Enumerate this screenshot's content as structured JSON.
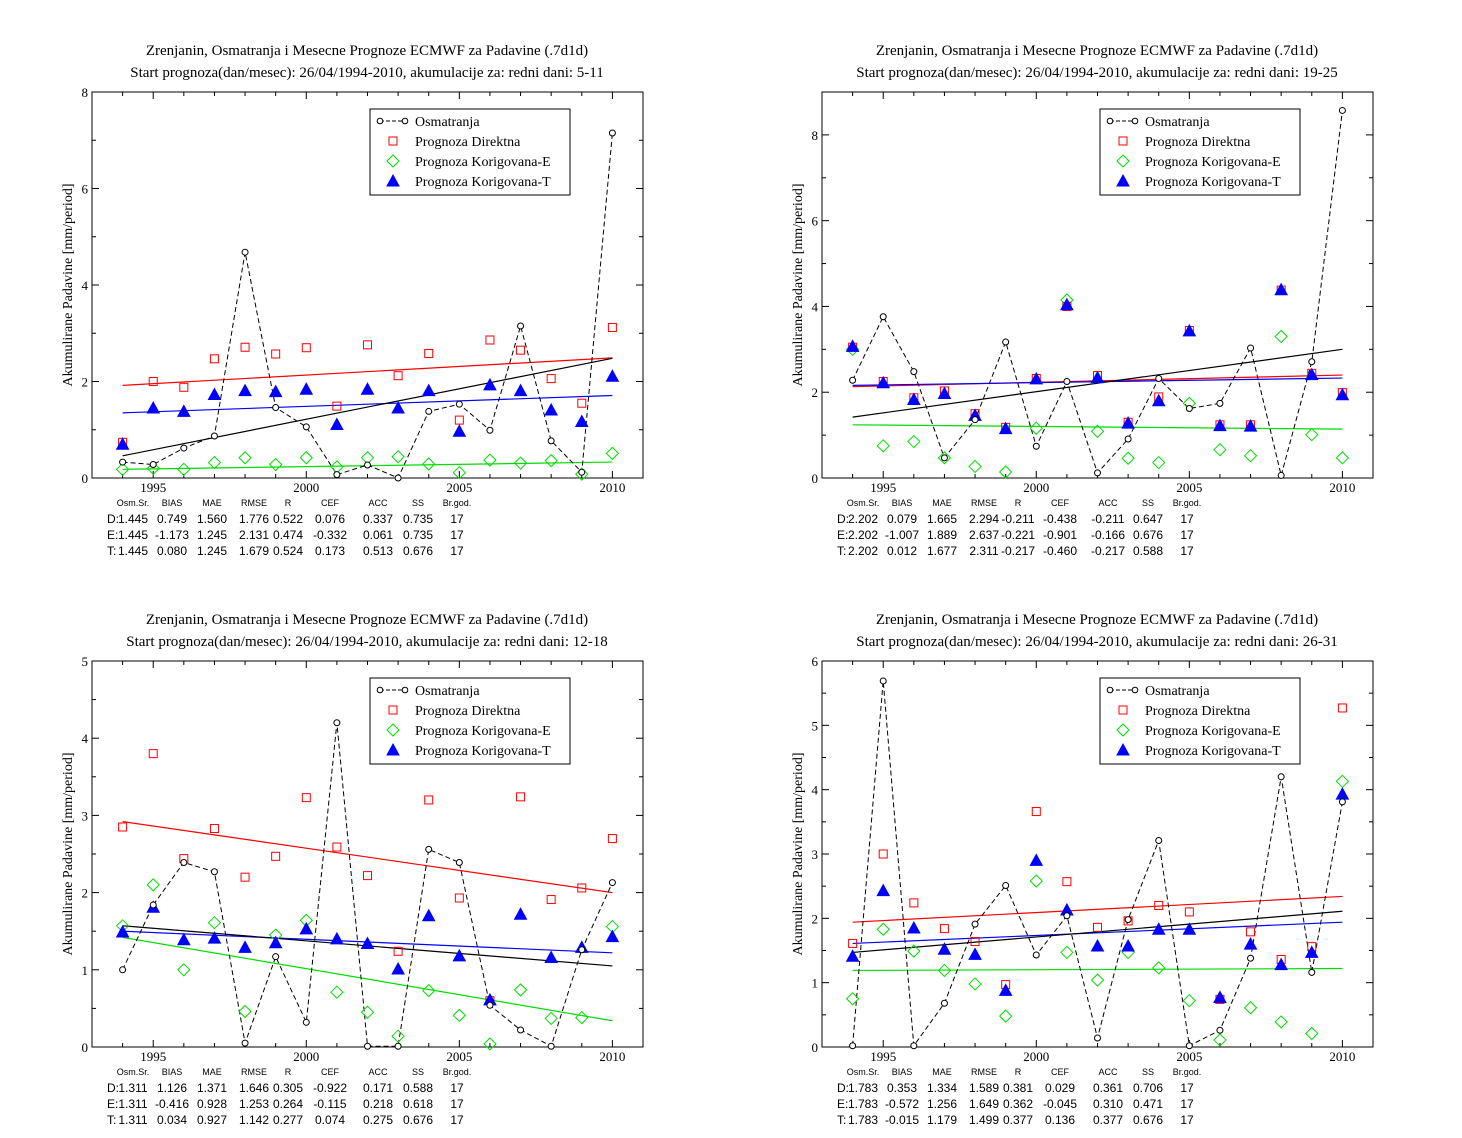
{
  "legend_labels": [
    "Osmatranja",
    "Prognoza Direktna",
    "Prognoza Korigovana-E",
    "Prognoza Korigovana-T"
  ],
  "colors": {
    "obs": "#000000",
    "direct": "#ff0000",
    "corrE": "#00dd00",
    "corrT": "#0000ff"
  },
  "stat_headers": [
    "Osm.Sr.",
    "BIAS",
    "MAE",
    "RMSE",
    "R",
    "CEF",
    "ACC",
    "SS",
    "Br.god."
  ],
  "chart_data": [
    {
      "type": "scatter",
      "title": "Zrenjanin, Osmatranja i Mesecne Prognoze ECMWF za Padavine (.7d1d)",
      "subtitle": "Start prognoza(dan/mesec): 26/04/1994-2010, akumulacije za: redni dani: 5-11",
      "ylabel": "Akumulirane Padavine [mm/period]",
      "xlim": [
        1993,
        2011
      ],
      "ylim": [
        0,
        8
      ],
      "yticks": [
        0,
        2,
        4,
        6,
        8
      ],
      "xticks": [
        1995,
        2000,
        2005,
        2010
      ],
      "legend_position": "top-right",
      "x": [
        1994,
        1995,
        1996,
        1997,
        1998,
        1999,
        2000,
        2001,
        2002,
        2003,
        2004,
        2005,
        2006,
        2007,
        2008,
        2009,
        2010
      ],
      "series": [
        {
          "name": "Osmatranja",
          "values": [
            0.33,
            0.28,
            0.62,
            0.87,
            4.68,
            1.46,
            1.06,
            0.07,
            0.27,
            0.0,
            1.38,
            1.53,
            0.99,
            3.15,
            0.77,
            0.12,
            7.15
          ]
        },
        {
          "name": "Prognoza Direktna",
          "values": [
            0.74,
            2.0,
            1.88,
            2.47,
            2.71,
            2.57,
            2.7,
            1.49,
            2.76,
            2.12,
            2.58,
            1.2,
            2.86,
            2.65,
            2.06,
            1.55,
            3.12
          ]
        },
        {
          "name": "Prognoza Korigovana-E",
          "values": [
            0.18,
            0.2,
            0.18,
            0.32,
            0.42,
            0.28,
            0.42,
            0.23,
            0.42,
            0.44,
            0.29,
            0.11,
            0.37,
            0.31,
            0.36,
            0.08,
            0.51
          ]
        },
        {
          "name": "Prognoza Korigovana-T",
          "values": [
            0.7,
            1.45,
            1.38,
            1.73,
            1.81,
            1.79,
            1.84,
            1.11,
            1.84,
            1.45,
            1.81,
            0.97,
            1.93,
            1.81,
            1.41,
            1.17,
            2.11
          ]
        }
      ],
      "trends": {
        "obs": [
          0.46,
          2.48
        ],
        "direct": [
          1.92,
          2.49
        ],
        "corrE": [
          0.18,
          0.33
        ],
        "corrT": [
          1.35,
          1.71
        ]
      },
      "stats": [
        {
          "label": "D:",
          "values": [
            "1.445",
            "0.749",
            "1.560",
            "1.776",
            "0.522",
            "0.076",
            "0.337",
            "0.735",
            "17"
          ]
        },
        {
          "label": "E:",
          "values": [
            "1.445",
            "-1.173",
            "1.245",
            "2.131",
            "0.474",
            "-0.332",
            "0.061",
            "0.735",
            "17"
          ]
        },
        {
          "label": "T:",
          "values": [
            "1.445",
            "0.080",
            "1.245",
            "1.679",
            "0.524",
            "0.173",
            "0.513",
            "0.676",
            "17"
          ]
        }
      ]
    },
    {
      "type": "scatter",
      "title": "Zrenjanin, Osmatranja i Mesecne Prognoze ECMWF za Padavine (.7d1d)",
      "subtitle": "Start prognoza(dan/mesec): 26/04/1994-2010, akumulacije za: redni dani: 19-25",
      "ylabel": "Akumulirane Padavine [mm/period]",
      "xlim": [
        1993,
        2011
      ],
      "ylim": [
        0,
        9
      ],
      "yticks": [
        0,
        2,
        4,
        6,
        8
      ],
      "xticks": [
        1995,
        2000,
        2005,
        2010
      ],
      "legend_position": "top-right",
      "x": [
        1994,
        1995,
        1996,
        1997,
        1998,
        1999,
        2000,
        2001,
        2002,
        2003,
        2004,
        2005,
        2006,
        2007,
        2008,
        2009,
        2010
      ],
      "series": [
        {
          "name": "Osmatranja",
          "values": [
            2.28,
            3.76,
            2.48,
            0.47,
            1.36,
            3.17,
            0.74,
            2.25,
            0.12,
            0.91,
            2.32,
            1.62,
            1.74,
            3.03,
            0.06,
            2.71,
            8.57
          ]
        },
        {
          "name": "Prognoza Direktna",
          "values": [
            3.05,
            2.25,
            1.87,
            2.03,
            1.5,
            1.18,
            2.32,
            4.0,
            2.39,
            1.3,
            1.89,
            3.44,
            1.24,
            1.24,
            4.38,
            2.44,
            1.99
          ]
        },
        {
          "name": "Prognoza Korigovana-E",
          "values": [
            3.0,
            0.75,
            0.85,
            0.47,
            0.27,
            0.14,
            1.16,
            4.15,
            1.09,
            0.46,
            0.36,
            1.74,
            0.66,
            0.52,
            3.3,
            1.01,
            0.47
          ]
        },
        {
          "name": "Prognoza Korigovana-T",
          "values": [
            3.07,
            2.22,
            1.83,
            1.97,
            1.46,
            1.15,
            2.31,
            4.04,
            2.34,
            1.28,
            1.8,
            3.43,
            1.22,
            1.21,
            4.39,
            2.41,
            1.94
          ]
        }
      ],
      "trends": {
        "obs": [
          1.42,
          3.0
        ],
        "direct": [
          2.13,
          2.4
        ],
        "corrE": [
          1.24,
          1.14
        ],
        "corrT": [
          2.16,
          2.33
        ]
      },
      "stats": [
        {
          "label": "D:",
          "values": [
            "2.202",
            "0.079",
            "1.665",
            "2.294",
            "-0.211",
            "-0.438",
            "-0.211",
            "0.647",
            "17"
          ]
        },
        {
          "label": "E:",
          "values": [
            "2.202",
            "-1.007",
            "1.889",
            "2.637",
            "-0.221",
            "-0.901",
            "-0.166",
            "0.676",
            "17"
          ]
        },
        {
          "label": "T:",
          "values": [
            "2.202",
            "0.012",
            "1.677",
            "2.311",
            "-0.217",
            "-0.460",
            "-0.217",
            "0.588",
            "17"
          ]
        }
      ]
    },
    {
      "type": "scatter",
      "title": "Zrenjanin, Osmatranja i Mesecne Prognoze ECMWF za Padavine (.7d1d)",
      "subtitle": "Start prognoza(dan/mesec): 26/04/1994-2010, akumulacije za: redni dani: 12-18",
      "ylabel": "Akumulirane Padavine [mm/period]",
      "xlim": [
        1993,
        2011
      ],
      "ylim": [
        0,
        5
      ],
      "yticks": [
        0,
        1,
        2,
        3,
        4,
        5
      ],
      "xticks": [
        1995,
        2000,
        2005,
        2010
      ],
      "legend_position": "top-right",
      "x": [
        1994,
        1995,
        1996,
        1997,
        1998,
        1999,
        2000,
        2001,
        2002,
        2003,
        2004,
        2005,
        2006,
        2007,
        2008,
        2009,
        2010
      ],
      "series": [
        {
          "name": "Osmatranja",
          "values": [
            1.0,
            1.84,
            2.39,
            2.27,
            0.05,
            1.17,
            0.32,
            4.2,
            0.01,
            0.01,
            2.56,
            2.39,
            0.54,
            0.22,
            0.01,
            1.26,
            2.13
          ]
        },
        {
          "name": "Prognoza Direktna",
          "values": [
            2.85,
            3.8,
            2.44,
            2.83,
            2.2,
            2.47,
            3.23,
            2.59,
            2.22,
            1.24,
            3.2,
            1.93,
            0.6,
            3.24,
            1.91,
            2.06,
            2.7
          ]
        },
        {
          "name": "Prognoza Korigovana-E",
          "values": [
            1.57,
            2.1,
            1.0,
            1.61,
            0.46,
            1.45,
            1.64,
            0.71,
            0.45,
            0.14,
            0.73,
            0.41,
            0.04,
            0.74,
            0.37,
            0.38,
            1.56
          ]
        },
        {
          "name": "Prognoza Korigovana-T",
          "values": [
            1.49,
            1.81,
            1.39,
            1.41,
            1.29,
            1.35,
            1.53,
            1.4,
            1.34,
            1.01,
            1.7,
            1.18,
            0.61,
            1.72,
            1.16,
            1.29,
            1.43
          ]
        }
      ],
      "trends": {
        "obs": [
          1.57,
          1.05
        ],
        "direct": [
          2.92,
          2.0
        ],
        "corrE": [
          1.42,
          0.34
        ],
        "corrT": [
          1.5,
          1.22
        ]
      },
      "stats": [
        {
          "label": "D:",
          "values": [
            "1.311",
            "1.126",
            "1.371",
            "1.646",
            "0.305",
            "-0.922",
            "0.171",
            "0.588",
            "17"
          ]
        },
        {
          "label": "E:",
          "values": [
            "1.311",
            "-0.416",
            "0.928",
            "1.253",
            "0.264",
            "-0.115",
            "0.218",
            "0.618",
            "17"
          ]
        },
        {
          "label": "T:",
          "values": [
            "1.311",
            "0.034",
            "0.927",
            "1.142",
            "0.277",
            "0.074",
            "0.275",
            "0.676",
            "17"
          ]
        }
      ]
    },
    {
      "type": "scatter",
      "title": "Zrenjanin, Osmatranja i Mesecne Prognoze ECMWF za Padavine (.7d1d)",
      "subtitle": "Start prognoza(dan/mesec): 26/04/1994-2010, akumulacije za: redni dani: 26-31",
      "ylabel": "Akumulirane Padavine [mm/period]",
      "xlim": [
        1993,
        2011
      ],
      "ylim": [
        0,
        6
      ],
      "yticks": [
        0,
        1,
        2,
        3,
        4,
        5,
        6
      ],
      "xticks": [
        1995,
        2000,
        2005,
        2010
      ],
      "legend_position": "top-right",
      "x": [
        1994,
        1995,
        1996,
        1997,
        1998,
        1999,
        2000,
        2001,
        2002,
        2003,
        2004,
        2005,
        2006,
        2007,
        2008,
        2009,
        2010
      ],
      "series": [
        {
          "name": "Osmatranja",
          "values": [
            0.02,
            5.69,
            0.02,
            0.68,
            1.91,
            2.51,
            1.43,
            2.04,
            0.14,
            1.98,
            3.21,
            0.02,
            0.26,
            1.38,
            4.2,
            1.16,
            3.81
          ]
        },
        {
          "name": "Prognoza Direktna",
          "values": [
            1.61,
            3.0,
            2.24,
            1.84,
            1.64,
            0.97,
            3.66,
            2.57,
            1.86,
            1.96,
            2.2,
            2.1,
            0.74,
            1.79,
            1.36,
            1.56,
            5.27
          ]
        },
        {
          "name": "Prognoza Korigovana-E",
          "values": [
            0.75,
            1.83,
            1.49,
            1.19,
            0.98,
            0.48,
            2.58,
            1.47,
            1.04,
            1.47,
            1.23,
            0.72,
            0.11,
            0.61,
            0.39,
            0.21,
            4.13
          ]
        },
        {
          "name": "Prognoza Korigovana-T",
          "values": [
            1.41,
            2.43,
            1.85,
            1.52,
            1.44,
            0.88,
            2.9,
            2.13,
            1.57,
            1.57,
            1.83,
            1.83,
            0.77,
            1.6,
            1.28,
            1.47,
            3.93
          ]
        }
      ],
      "trends": {
        "obs": [
          1.47,
          2.11
        ],
        "direct": [
          1.94,
          2.34
        ],
        "corrE": [
          1.19,
          1.22
        ],
        "corrT": [
          1.61,
          1.94
        ]
      },
      "stats": [
        {
          "label": "D:",
          "values": [
            "1.783",
            "0.353",
            "1.334",
            "1.589",
            "0.381",
            "0.029",
            "0.361",
            "0.706",
            "17"
          ]
        },
        {
          "label": "E:",
          "values": [
            "1.783",
            "-0.572",
            "1.256",
            "1.649",
            "0.362",
            "-0.045",
            "0.310",
            "0.471",
            "17"
          ]
        },
        {
          "label": "T:",
          "values": [
            "1.783",
            "-0.015",
            "1.179",
            "1.499",
            "0.377",
            "0.136",
            "0.377",
            "0.676",
            "17"
          ]
        }
      ]
    }
  ]
}
